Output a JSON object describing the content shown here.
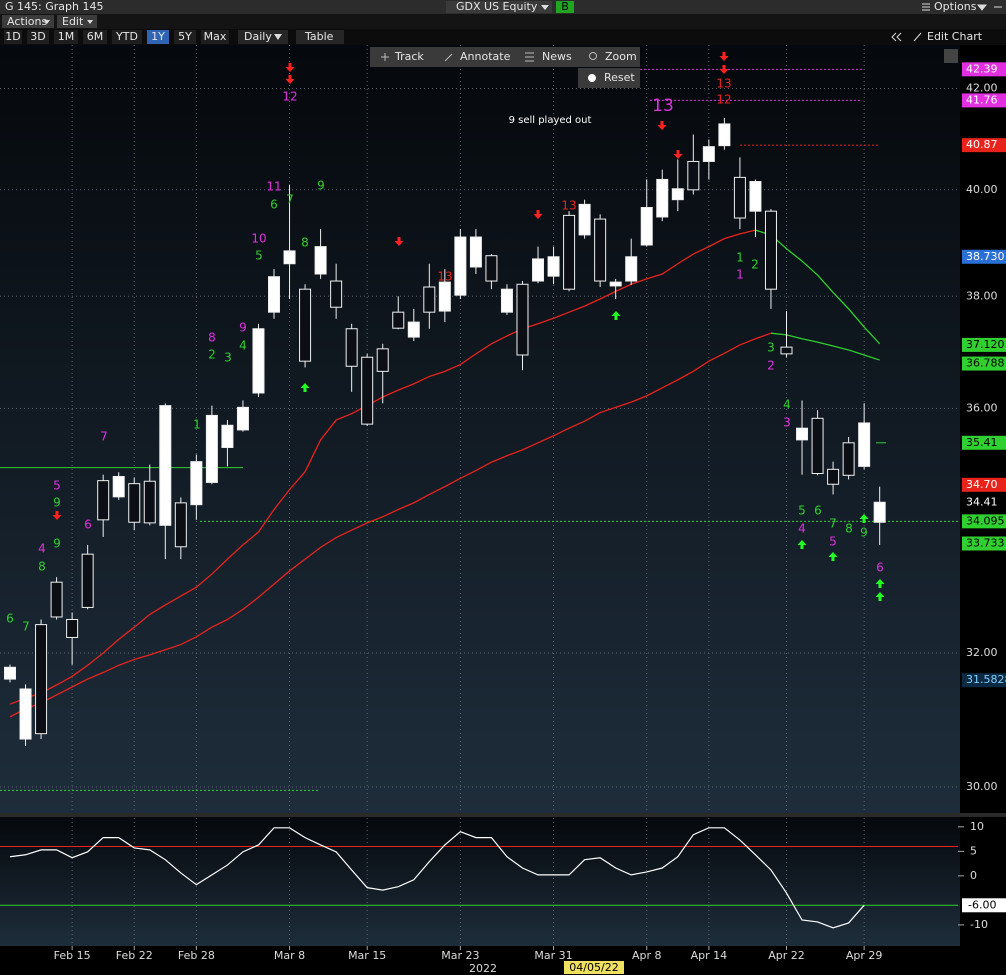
{
  "header": {
    "title": "G 145: Graph 145",
    "ticker": "GDX US Equity",
    "badge": "B",
    "options": "Options"
  },
  "menu": [
    "Actions",
    "Edit"
  ],
  "periods": [
    "1D",
    "3D",
    "1M",
    "6M",
    "YTD",
    "1Y",
    "5Y",
    "Max"
  ],
  "active_period": 5,
  "frequency": "Daily",
  "table": "Table",
  "edit_chart": "Edit Chart",
  "chart_tools": [
    "Track",
    "Annotate",
    "News",
    "Zoom"
  ],
  "reset": "Reset",
  "chart_data": [
    {
      "type": "candlestick",
      "log": true,
      "grid": true,
      "categories": [
        null,
        null,
        null,
        null,
        "Feb 15",
        null,
        null,
        null,
        "Feb 22",
        null,
        null,
        null,
        "Feb 28",
        null,
        null,
        null,
        null,
        null,
        "Mar 8",
        null,
        null,
        null,
        null,
        "Mar 15",
        null,
        null,
        null,
        null,
        null,
        "Mar 23",
        null,
        null,
        null,
        null,
        null,
        "Mar 31",
        null,
        null,
        null,
        null,
        null,
        "Apr 8",
        null,
        null,
        null,
        "Apr 14",
        null,
        null,
        null,
        null,
        "Apr 22",
        null,
        null,
        null,
        null,
        "Apr 29",
        null
      ],
      "open": [
        31.6,
        30.7,
        32.44,
        33.11,
        32.52,
        33.56,
        34.77,
        34.5,
        34.72,
        34.76,
        34.03,
        34.4,
        34.37,
        34.74,
        35.33,
        35.63,
        36.27,
        37.71,
        38.6,
        38.13,
        38.41,
        38.28,
        37.41,
        36.9,
        37.05,
        37.71,
        37.26,
        38.17,
        37.73,
        38.02,
        38.54,
        38.75,
        37.71,
        38.22,
        38.28,
        38.37,
        39.51,
        39.14,
        39.44,
        38.19,
        38.28,
        38.95,
        39.48,
        39.81,
        40.55,
        40.55,
        40.86,
        40.24,
        39.59,
        39.59,
        37.08,
        35.46,
        35.83,
        34.96,
        35.41,
        35.01,
        34.08
      ],
      "high": [
        31.82,
        31.52,
        32.52,
        33.19,
        32.63,
        33.71,
        34.87,
        34.91,
        34.82,
        35.04,
        36.09,
        34.49,
        35.21,
        36.05,
        35.8,
        36.14,
        37.5,
        38.5,
        40.1,
        38.22,
        39.25,
        38.6,
        37.5,
        36.96,
        37.14,
        38.0,
        37.77,
        38.6,
        38.5,
        39.25,
        39.25,
        38.78,
        38.22,
        38.28,
        38.92,
        38.92,
        39.59,
        39.81,
        39.53,
        38.32,
        39.07,
        40.2,
        40.39,
        40.59,
        41.08,
        40.98,
        41.41,
        40.63,
        40.2,
        39.63,
        37.73,
        36.14,
        35.97,
        35.09,
        35.51,
        36.09,
        34.67
      ],
      "low": [
        31.55,
        30.6,
        30.7,
        32.52,
        31.82,
        32.68,
        33.84,
        34.45,
        33.95,
        34.03,
        33.48,
        33.48,
        34.12,
        34.71,
        35.01,
        35.6,
        36.2,
        37.59,
        37.95,
        36.72,
        38.32,
        37.59,
        36.29,
        35.7,
        36.09,
        37.4,
        37.19,
        37.41,
        37.53,
        37.95,
        38.41,
        38.13,
        37.66,
        36.67,
        38.24,
        38.22,
        38.09,
        39.07,
        38.17,
        37.95,
        38.21,
        38.92,
        39.4,
        39.59,
        39.91,
        40.2,
        40.78,
        39.25,
        39.1,
        37.77,
        36.9,
        34.87,
        34.86,
        34.54,
        34.79,
        34.96,
        33.71
      ],
      "close": [
        31.78,
        31.45,
        30.78,
        32.56,
        32.24,
        32.71,
        34.12,
        34.84,
        34.08,
        34.07,
        36.05,
        33.68,
        35.09,
        35.88,
        35.71,
        36.02,
        37.41,
        38.36,
        38.84,
        36.83,
        38.92,
        37.8,
        36.74,
        35.73,
        36.65,
        37.42,
        37.53,
        37.71,
        38.26,
        39.1,
        39.1,
        38.28,
        38.13,
        36.94,
        38.69,
        38.73,
        38.13,
        39.72,
        38.28,
        38.26,
        38.73,
        39.66,
        40.2,
        40.02,
        40.0,
        40.84,
        41.29,
        39.46,
        40.16,
        38.13,
        36.96,
        35.66,
        34.89,
        34.71,
        34.86,
        35.75,
        34.41
      ],
      "overlays": [
        {
          "color": "#e8231c",
          "values": [
            31.22,
            31.31,
            31.39,
            31.51,
            31.64,
            31.81,
            32.0,
            32.21,
            32.4,
            32.6,
            32.75,
            32.89,
            33.03,
            33.24,
            33.48,
            33.71,
            33.92,
            34.29,
            34.62,
            34.92,
            35.46,
            35.8,
            35.91,
            36.05,
            36.2,
            36.32,
            36.43,
            36.56,
            36.65,
            36.77,
            36.96,
            37.14,
            37.28,
            37.41,
            37.5,
            37.6,
            37.71,
            37.82,
            37.95,
            38.09,
            38.22,
            38.32,
            38.41,
            38.6,
            38.78,
            38.92,
            39.07,
            39.16,
            39.23,
            null,
            null,
            null,
            null,
            null,
            null,
            null,
            null
          ]
        },
        {
          "color": "#2fd02f",
          "values": [
            null,
            null,
            null,
            null,
            null,
            null,
            null,
            null,
            null,
            null,
            null,
            null,
            null,
            null,
            null,
            null,
            null,
            null,
            null,
            null,
            null,
            null,
            null,
            null,
            null,
            null,
            null,
            null,
            null,
            null,
            null,
            null,
            null,
            null,
            null,
            null,
            null,
            null,
            null,
            null,
            null,
            null,
            null,
            null,
            null,
            null,
            null,
            null,
            39.23,
            39.14,
            38.88,
            38.65,
            38.39,
            38.07,
            37.77,
            37.44,
            37.14
          ]
        },
        {
          "color": "#e8231c",
          "values": [
            31.03,
            31.15,
            31.24,
            31.36,
            31.48,
            31.6,
            31.7,
            31.81,
            31.9,
            31.97,
            32.05,
            32.13,
            32.25,
            32.4,
            32.52,
            32.68,
            32.87,
            33.08,
            33.29,
            33.48,
            33.67,
            33.83,
            33.95,
            34.07,
            34.17,
            34.29,
            34.4,
            34.54,
            34.67,
            34.81,
            34.94,
            35.08,
            35.19,
            35.29,
            35.41,
            35.53,
            35.66,
            35.78,
            35.93,
            36.02,
            36.11,
            36.22,
            36.36,
            36.5,
            36.65,
            36.83,
            36.97,
            37.12,
            37.23,
            37.33,
            null,
            null,
            null,
            null,
            null,
            null,
            null
          ]
        },
        {
          "color": "#2fd02f",
          "values": [
            null,
            null,
            null,
            null,
            null,
            null,
            null,
            null,
            null,
            null,
            null,
            null,
            null,
            null,
            null,
            null,
            null,
            null,
            null,
            null,
            null,
            null,
            null,
            null,
            null,
            null,
            null,
            null,
            null,
            null,
            null,
            null,
            null,
            null,
            null,
            null,
            null,
            null,
            null,
            null,
            null,
            null,
            null,
            null,
            null,
            null,
            null,
            null,
            null,
            37.33,
            37.3,
            37.23,
            37.17,
            37.1,
            37.03,
            36.94,
            36.85
          ]
        }
      ],
      "ylim": [
        29.64,
        42.89
      ],
      "yticks": [
        {
          "value": 30,
          "label": "30.00"
        },
        {
          "value": 32,
          "label": "32.00"
        },
        {
          "value": 36,
          "label": "36.00"
        },
        {
          "value": 38,
          "label": "38.00"
        },
        {
          "value": 40,
          "label": "40.00"
        },
        {
          "value": 42,
          "label": "42.00"
        }
      ],
      "price_labels": [
        {
          "value": 42.39,
          "label": "42.39",
          "color": "#e030e0"
        },
        {
          "value": 41.76,
          "label": "41.76",
          "color": "#e030e0"
        },
        {
          "value": 40.87,
          "label": "40.87",
          "color": "#e8231c"
        },
        {
          "value": 38.73,
          "label": "38.730",
          "color": "#2a6fd6"
        },
        {
          "value": 37.12,
          "label": "37.120",
          "color": "#2fd02f"
        },
        {
          "value": 36.788,
          "label": "36.788",
          "color": "#2fd02f"
        },
        {
          "value": 35.41,
          "label": "35.41",
          "color": "#2fd02f"
        },
        {
          "value": 34.7,
          "label": "34.70",
          "color": "#e8231c"
        },
        {
          "value": 34.41,
          "label": "34.41",
          "color": "#000000"
        },
        {
          "value": 34.095,
          "label": "34.095",
          "color": "#2fd02f"
        },
        {
          "value": 33.733,
          "label": "33.733",
          "color": "#2fd02f"
        },
        {
          "value": 31.5828,
          "label": "31.5828",
          "color": "#0d2a44"
        }
      ],
      "levels": [
        {
          "value": 34.99,
          "color": "#2fd02f"
        },
        {
          "value": 29.95,
          "color": "#2fd02f"
        }
      ],
      "note": "9 sell played out",
      "year_label": "2022",
      "cursor_label": "04/05/22",
      "annotations": [
        {
          "text": "12",
          "color": "#e030e0"
        },
        {
          "text": "11",
          "color": "#e030e0"
        },
        {
          "text": "7",
          "color": "#2fd02f"
        },
        {
          "text": "9",
          "color": "#2fd02f"
        },
        {
          "text": "6",
          "color": "#2fd02f"
        },
        {
          "text": "8",
          "color": "#2fd02f"
        },
        {
          "text": "10",
          "color": "#e030e0"
        },
        {
          "text": "5",
          "color": "#2fd02f"
        },
        {
          "text": "9",
          "color": "#e030e0"
        },
        {
          "text": "4",
          "color": "#2fd02f"
        },
        {
          "text": "3",
          "color": "#2fd02f"
        },
        {
          "text": "8",
          "color": "#e030e0"
        },
        {
          "text": "2",
          "color": "#2fd02f"
        },
        {
          "text": "1",
          "color": "#2fd02f"
        },
        {
          "text": "7",
          "color": "#e030e0"
        },
        {
          "text": "5",
          "color": "#e030e0"
        },
        {
          "text": "9",
          "color": "#2fd02f"
        },
        {
          "text": "9",
          "color": "#2fd02f"
        },
        {
          "text": "4",
          "color": "#e030e0"
        },
        {
          "text": "8",
          "color": "#2fd02f"
        },
        {
          "text": "6",
          "color": "#e030e0"
        },
        {
          "text": "6",
          "color": "#2fd02f"
        },
        {
          "text": "7",
          "color": "#2fd02f"
        },
        {
          "text": "13",
          "color": "#e8231c"
        },
        {
          "text": "13",
          "color": "#e8231c"
        },
        {
          "text": "13",
          "color": "#e8231c"
        },
        {
          "text": "12",
          "color": "#e8231c"
        },
        {
          "text": "1",
          "color": "#2fd02f"
        },
        {
          "text": "1",
          "color": "#e030e0"
        },
        {
          "text": "2",
          "color": "#2fd02f"
        },
        {
          "text": "3",
          "color": "#2fd02f"
        },
        {
          "text": "2",
          "color": "#e030e0"
        },
        {
          "text": "4",
          "color": "#2fd02f"
        },
        {
          "text": "3",
          "color": "#e030e0"
        },
        {
          "text": "5",
          "color": "#2fd02f"
        },
        {
          "text": "4",
          "color": "#e030e0"
        },
        {
          "text": "6",
          "color": "#2fd02f"
        },
        {
          "text": "7",
          "color": "#2fd02f"
        },
        {
          "text": "5",
          "color": "#e030e0"
        },
        {
          "text": "8",
          "color": "#2fd02f"
        },
        {
          "text": "9",
          "color": "#2fd02f"
        },
        {
          "text": "6",
          "color": "#e030e0"
        },
        {
          "text": "13",
          "color": "#e030e0"
        }
      ]
    },
    {
      "type": "line",
      "color": "#ffffff",
      "values": [
        3.9,
        4.3,
        5.3,
        5.3,
        3.7,
        4.9,
        7.8,
        7.8,
        5.7,
        5.3,
        3.3,
        0.6,
        -1.8,
        0.2,
        2.2,
        4.9,
        6.3,
        9.8,
        9.8,
        7.8,
        6.3,
        4.9,
        1.2,
        -2.4,
        -2.9,
        -2.2,
        -0.8,
        2.9,
        6.3,
        9.0,
        7.8,
        7.8,
        3.9,
        1.6,
        0.2,
        0.2,
        0.2,
        3.3,
        3.7,
        1.6,
        0.2,
        0.8,
        1.6,
        3.9,
        8.4,
        9.8,
        9.8,
        7.3,
        4.3,
        1.2,
        -3.5,
        -9.0,
        -9.4,
        -10.6,
        -9.6,
        -6.0,
        null
      ],
      "ylim": [
        -14.1,
        11.8
      ],
      "yticks": [
        -10,
        0,
        5,
        10
      ],
      "levels": [
        {
          "value": 6,
          "color": "#e8231c"
        },
        {
          "value": -6,
          "color": "#2fd02f"
        }
      ],
      "current": {
        "value": -6,
        "label": "-6.00"
      }
    }
  ]
}
